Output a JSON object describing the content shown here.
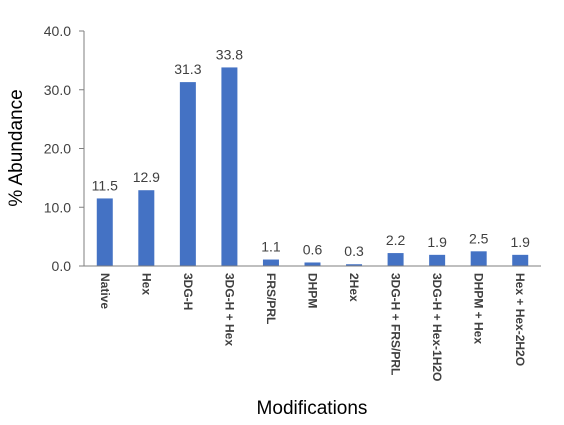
{
  "chart_data": {
    "type": "bar",
    "title": "",
    "xlabel": "Modifications",
    "ylabel": "% Abundance",
    "ylim": [
      0,
      40
    ],
    "yticks": [
      "0.0",
      "10.0",
      "20.0",
      "30.0",
      "40.0"
    ],
    "grid": false,
    "categories": [
      "Native",
      "Hex",
      "3DG-H",
      "3DG-H + Hex",
      "FRS/PRL",
      "DHPM",
      "2Hex",
      "3DG-H + FRS/PRL",
      "3DG-H + Hex-1H2O",
      "DHPM + Hex",
      "Hex + Hex-2H2O"
    ],
    "values": [
      11.5,
      12.9,
      31.3,
      33.8,
      1.1,
      0.6,
      0.3,
      2.2,
      1.9,
      2.5,
      1.9
    ],
    "data_labels": [
      "11.5",
      "12.9",
      "31.3",
      "33.8",
      "1.1",
      "0.6",
      "0.3",
      "2.2",
      "1.9",
      "2.5",
      "1.9"
    ],
    "bar_color": "#4472C4",
    "axis_color": "#7F7F7F"
  }
}
